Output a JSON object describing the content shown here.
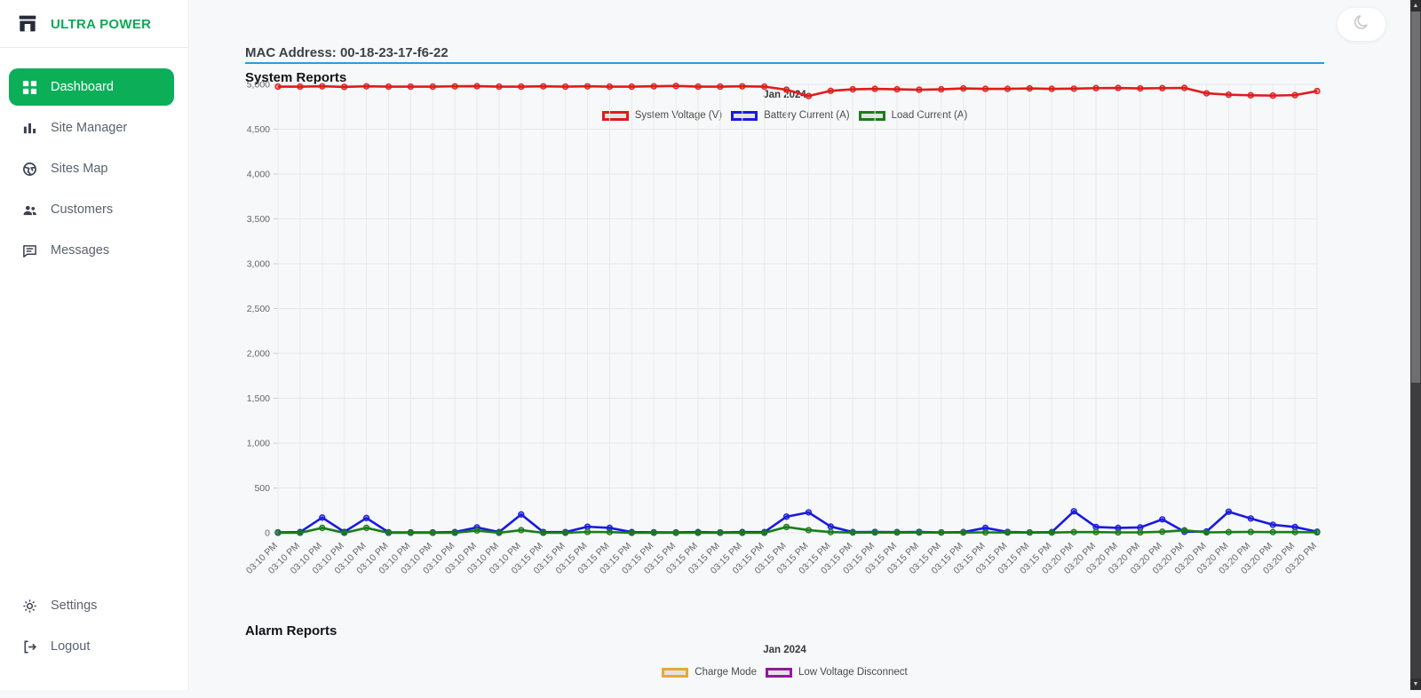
{
  "app": {
    "brand": "ULTRA POWER"
  },
  "sidebar": {
    "items": [
      {
        "label": "Dashboard",
        "icon": "dashboard-grid-icon",
        "active": true
      },
      {
        "label": "Site Manager",
        "icon": "bar-chart-icon",
        "active": false
      },
      {
        "label": "Sites Map",
        "icon": "globe-icon",
        "active": false
      },
      {
        "label": "Customers",
        "icon": "people-icon",
        "active": false
      },
      {
        "label": "Messages",
        "icon": "message-icon",
        "active": false
      }
    ],
    "footer_items": [
      {
        "label": "Settings",
        "icon": "gear-icon"
      },
      {
        "label": "Logout",
        "icon": "logout-icon"
      }
    ]
  },
  "header": {
    "mac_address": "MAC Address: 00-18-23-17-f6-22"
  },
  "sections": {
    "system": "System Reports",
    "alarm": "Alarm Reports"
  },
  "colors": {
    "accent_green": "#0caf58",
    "brand_green": "#0caa55",
    "divider_blue": "#2b9cd8",
    "series_red": "#e01b1b",
    "series_blue": "#1a1adf",
    "series_green": "#1a7d1a",
    "series_orange": "#e8a838",
    "series_purple": "#93189d",
    "grid": "#e7e7e7",
    "tick_text": "#666666"
  },
  "chart_data": [
    {
      "type": "line",
      "title": "Jan 2024",
      "legend_position": "top",
      "grid": true,
      "ylim": [
        0,
        5000
      ],
      "ytick_step": 500,
      "x": [
        "03:10 PM",
        "03:10 PM",
        "03:10 PM",
        "03:10 PM",
        "03:10 PM",
        "03:10 PM",
        "03:10 PM",
        "03:10 PM",
        "03:10 PM",
        "03:10 PM",
        "03:10 PM",
        "03:10 PM",
        "03:15 PM",
        "03:15 PM",
        "03:15 PM",
        "03:15 PM",
        "03:15 PM",
        "03:15 PM",
        "03:15 PM",
        "03:15 PM",
        "03:15 PM",
        "03:15 PM",
        "03:15 PM",
        "03:15 PM",
        "03:15 PM",
        "03:15 PM",
        "03:15 PM",
        "03:15 PM",
        "03:15 PM",
        "03:15 PM",
        "03:15 PM",
        "03:15 PM",
        "03:15 PM",
        "03:15 PM",
        "03:15 PM",
        "03:15 PM",
        "03:20 PM",
        "03:20 PM",
        "03:20 PM",
        "03:20 PM",
        "03:20 PM",
        "03:20 PM",
        "03:20 PM",
        "03:20 PM",
        "03:20 PM",
        "03:20 PM",
        "03:20 PM",
        "03:20 PM"
      ],
      "series": [
        {
          "name": "System Voltage (V)",
          "color": "#e01b1b",
          "values": [
            4975,
            4975,
            4978,
            4972,
            4978,
            4975,
            4975,
            4975,
            4978,
            4980,
            4975,
            4975,
            4978,
            4975,
            4978,
            4975,
            4975,
            4978,
            4982,
            4975,
            4975,
            4978,
            4975,
            4940,
            4870,
            4928,
            4945,
            4950,
            4945,
            4940,
            4945,
            4955,
            4950,
            4950,
            4955,
            4950,
            4952,
            4958,
            4960,
            4955,
            4958,
            4960,
            4900,
            4885,
            4878,
            4875,
            4880,
            4925
          ]
        },
        {
          "name": "Battery Current (A)",
          "color": "#1a1adf",
          "values": [
            5,
            8,
            170,
            10,
            165,
            6,
            5,
            5,
            8,
            60,
            8,
            205,
            8,
            8,
            68,
            55,
            8,
            6,
            5,
            8,
            5,
            8,
            8,
            180,
            228,
            70,
            8,
            10,
            8,
            10,
            5,
            8,
            55,
            10,
            5,
            8,
            240,
            65,
            55,
            60,
            150,
            12,
            15,
            235,
            160,
            90,
            65,
            12
          ]
        },
        {
          "name": "Load Current (A)",
          "color": "#1a7d1a",
          "values": [
            0,
            0,
            55,
            0,
            55,
            0,
            0,
            0,
            0,
            25,
            0,
            30,
            0,
            0,
            10,
            8,
            0,
            0,
            0,
            0,
            0,
            0,
            0,
            65,
            30,
            8,
            3,
            3,
            3,
            3,
            3,
            3,
            5,
            3,
            3,
            3,
            8,
            8,
            5,
            5,
            12,
            28,
            5,
            8,
            10,
            8,
            8,
            5
          ]
        }
      ]
    },
    {
      "type": "line",
      "title": "Jan 2024",
      "legend_position": "top",
      "series": [
        {
          "name": "Charge Mode",
          "color": "#e8a838"
        },
        {
          "name": "Low Voltage Disconnect",
          "color": "#93189d"
        }
      ]
    }
  ]
}
